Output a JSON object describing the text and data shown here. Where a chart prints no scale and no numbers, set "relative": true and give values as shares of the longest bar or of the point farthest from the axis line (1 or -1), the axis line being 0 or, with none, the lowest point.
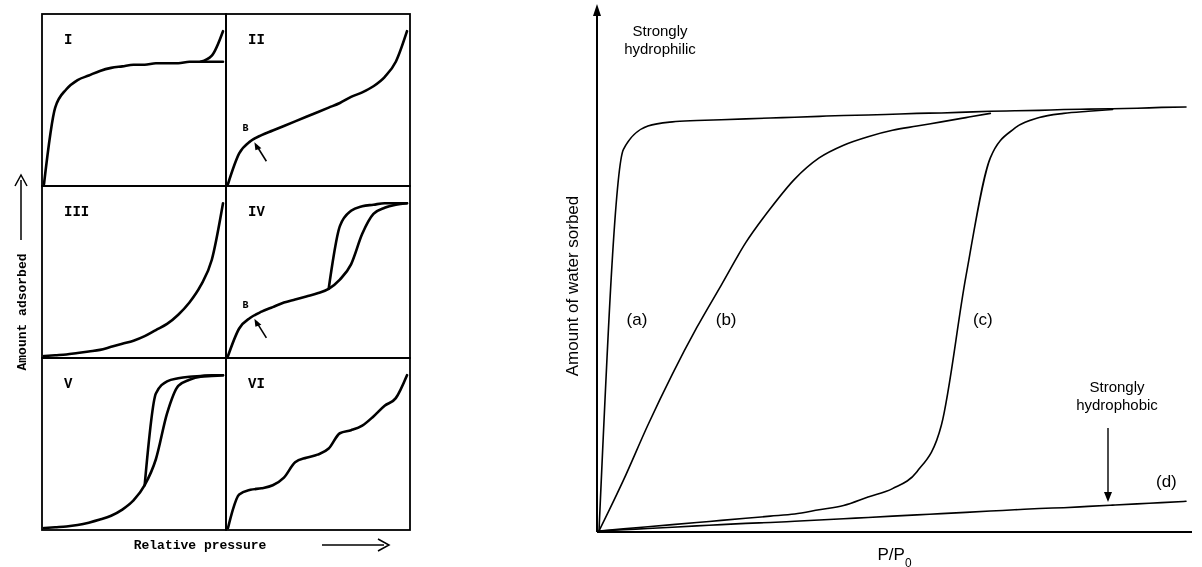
{
  "chart_data": [
    {
      "type": "line",
      "title": "I",
      "ylabel": "Amount adsorbed",
      "relative": true,
      "categories": [
        null,
        null,
        null,
        null,
        null,
        null,
        null,
        null,
        null,
        null,
        null,
        null,
        null,
        null,
        null,
        null,
        null
      ],
      "series": [
        {
          "color": "#000000",
          "values": [
            0,
            0.5,
            0.62,
            0.68,
            0.71,
            0.74,
            0.76,
            0.77,
            0.78,
            0.78,
            0.79,
            0.79,
            0.79,
            0.8,
            0.8,
            0.8,
            0.8
          ]
        },
        {
          "color": "#000000",
          "values": [
            null,
            null,
            null,
            null,
            null,
            null,
            null,
            null,
            null,
            null,
            null,
            null,
            null,
            null,
            0.8,
            0.84,
            1
          ]
        }
      ]
    },
    {
      "type": "line",
      "title": "II",
      "relative": true,
      "annotations": [
        "B"
      ],
      "categories": [
        null,
        null,
        null,
        null,
        null,
        null,
        null,
        null,
        null,
        null,
        null,
        null,
        null,
        null,
        null,
        null,
        null
      ],
      "series": [
        {
          "color": "#000000",
          "values": [
            0,
            0.2,
            0.28,
            0.32,
            0.35,
            0.38,
            0.41,
            0.44,
            0.47,
            0.5,
            0.53,
            0.57,
            0.6,
            0.64,
            0.7,
            0.8,
            1
          ]
        }
      ]
    },
    {
      "type": "line",
      "title": "III",
      "relative": true,
      "categories": [
        null,
        null,
        null,
        null,
        null,
        null,
        null,
        null,
        null,
        null,
        null,
        null,
        null,
        null,
        null,
        null,
        null
      ],
      "series": [
        {
          "color": "#000000",
          "values": [
            0,
            0.005,
            0.01,
            0.02,
            0.03,
            0.04,
            0.06,
            0.08,
            0.1,
            0.13,
            0.17,
            0.21,
            0.27,
            0.35,
            0.46,
            0.63,
            1
          ]
        }
      ]
    },
    {
      "type": "line",
      "title": "IV",
      "relative": true,
      "annotations": [
        "B"
      ],
      "categories": [
        null,
        null,
        null,
        null,
        null,
        null,
        null,
        null,
        null,
        null,
        null,
        null,
        null,
        null,
        null,
        null,
        null
      ],
      "series": [
        {
          "color": "#000000",
          "values": [
            0,
            0.18,
            0.25,
            0.29,
            0.32,
            0.35,
            0.37,
            0.39,
            0.41,
            0.44,
            0.5,
            0.6,
            0.8,
            0.93,
            0.97,
            0.99,
            1
          ]
        },
        {
          "color": "#000000",
          "values": [
            null,
            null,
            null,
            null,
            null,
            null,
            null,
            null,
            null,
            0.44,
            0.85,
            0.95,
            0.98,
            0.99,
            1,
            1,
            1
          ]
        }
      ]
    },
    {
      "type": "line",
      "title": "V",
      "xlabel": "Relative pressure",
      "relative": true,
      "categories": [
        null,
        null,
        null,
        null,
        null,
        null,
        null,
        null,
        null,
        null,
        null,
        null,
        null,
        null,
        null,
        null,
        null
      ],
      "series": [
        {
          "color": "#000000",
          "values": [
            0,
            0.005,
            0.01,
            0.02,
            0.035,
            0.055,
            0.08,
            0.12,
            0.18,
            0.28,
            0.45,
            0.75,
            0.93,
            0.97,
            0.99,
            0.995,
            1
          ]
        },
        {
          "color": "#000000",
          "values": [
            null,
            null,
            null,
            null,
            null,
            null,
            null,
            null,
            null,
            0.28,
            0.88,
            0.96,
            0.98,
            0.99,
            0.995,
            1,
            1
          ]
        }
      ]
    },
    {
      "type": "line",
      "title": "VI",
      "relative": true,
      "categories": [
        null,
        null,
        null,
        null,
        null,
        null,
        null,
        null,
        null,
        null,
        null,
        null,
        null,
        null,
        null,
        null,
        null
      ],
      "series": [
        {
          "color": "#000000",
          "values": [
            0,
            0.22,
            0.25,
            0.26,
            0.28,
            0.33,
            0.43,
            0.46,
            0.48,
            0.52,
            0.62,
            0.64,
            0.67,
            0.73,
            0.8,
            0.85,
            1
          ]
        }
      ]
    },
    {
      "type": "line",
      "xlabel": "P/P$_{0}$",
      "ylabel": "Amount of water sorbed",
      "relative": true,
      "annotations": [
        "Strongly hydrophilic",
        "Strongly hydrophobic"
      ],
      "categories": [
        null,
        null,
        null,
        null,
        null,
        null,
        null,
        null,
        null,
        null,
        null,
        null,
        null,
        null,
        null,
        null,
        null,
        null,
        null,
        null,
        null,
        null,
        null,
        null,
        null
      ],
      "series": [
        {
          "name": "(a)",
          "color": "#000000",
          "values": [
            0,
            0.9,
            0.955,
            0.965,
            0.968,
            0.97,
            0.972,
            0.974,
            0.976,
            0.978,
            0.98,
            0.981,
            0.983,
            0.985,
            0.986,
            0.988,
            0.99,
            0.991,
            0.992,
            0.994,
            0.995,
            0.996,
            0.997,
            0.999,
            1
          ]
        },
        {
          "name": "(b)",
          "color": "#000000",
          "values": [
            0,
            0.12,
            0.25,
            0.37,
            0.48,
            0.58,
            0.68,
            0.76,
            0.83,
            0.88,
            0.91,
            0.93,
            0.945,
            0.955,
            0.965,
            0.975,
            0.985,
            null,
            null,
            null,
            null,
            null,
            null,
            null,
            null
          ]
        },
        {
          "name": "(c)",
          "color": "#000000",
          "values": [
            0,
            0.005,
            0.01,
            0.015,
            0.02,
            0.025,
            0.03,
            0.035,
            0.04,
            0.05,
            0.06,
            0.08,
            0.1,
            0.14,
            0.25,
            0.6,
            0.88,
            0.95,
            0.975,
            0.985,
            0.99,
            0.994,
            null,
            null,
            null
          ]
        },
        {
          "name": "(d)",
          "color": "#000000",
          "values": [
            0,
            0.003,
            0.006,
            0.009,
            0.012,
            0.015,
            0.018,
            0.02,
            0.023,
            0.026,
            0.029,
            0.032,
            0.035,
            0.038,
            0.041,
            0.044,
            0.047,
            0.05,
            0.053,
            0.055,
            0.058,
            0.061,
            0.064,
            0.067,
            0.07
          ]
        }
      ]
    }
  ]
}
